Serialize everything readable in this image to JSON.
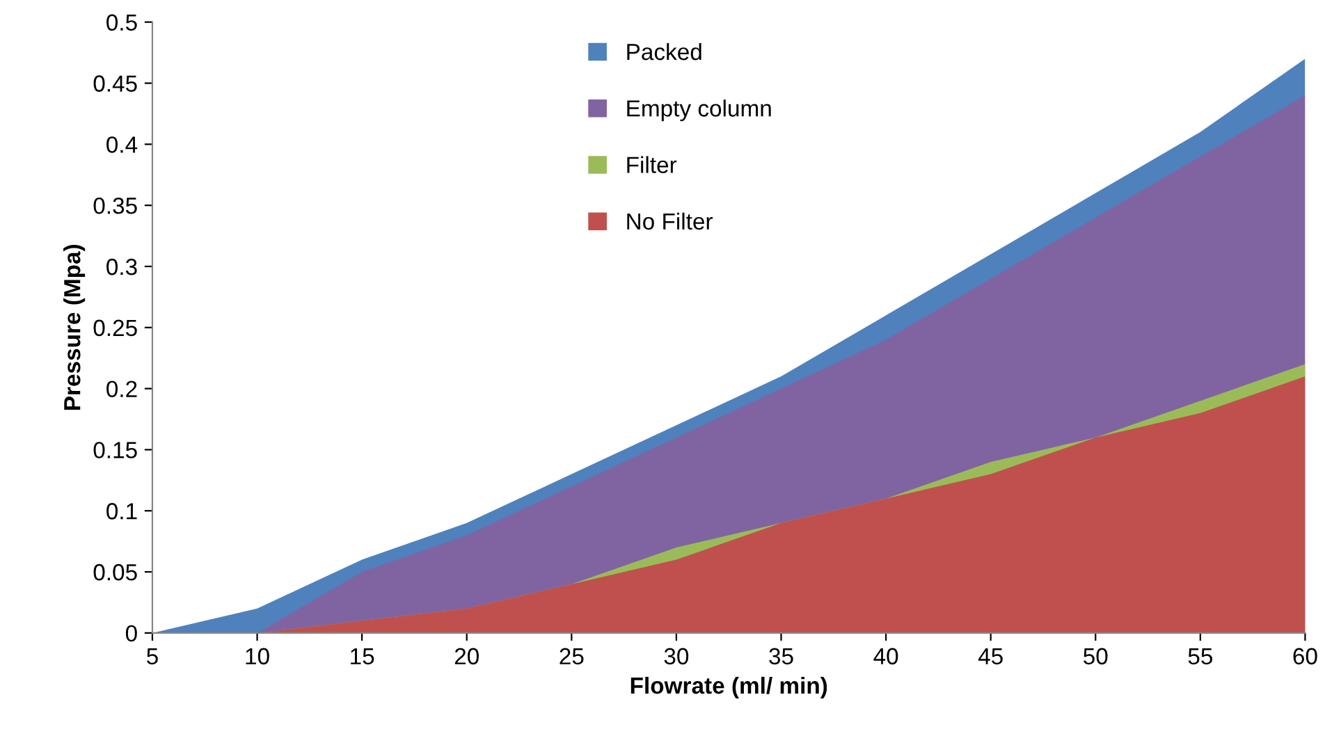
{
  "chart_data": {
    "type": "area",
    "xlabel": "Flowrate (ml/ min)",
    "ylabel": "Pressure (Mpa)",
    "x": [
      5,
      10,
      15,
      20,
      25,
      30,
      35,
      40,
      45,
      50,
      55,
      60
    ],
    "series": [
      {
        "name": "Packed",
        "color": "#4f81bd",
        "values": [
          0,
          0.02,
          0.06,
          0.09,
          0.13,
          0.17,
          0.21,
          0.26,
          0.31,
          0.36,
          0.41,
          0.47
        ]
      },
      {
        "name": "Empty column",
        "color": "#8064a2",
        "values": [
          0,
          0,
          0.05,
          0.08,
          0.12,
          0.16,
          0.2,
          0.24,
          0.29,
          0.34,
          0.39,
          0.44
        ]
      },
      {
        "name": "Filter",
        "color": "#9bbb59",
        "values": [
          0,
          0,
          0.01,
          0.02,
          0.04,
          0.07,
          0.09,
          0.11,
          0.14,
          0.16,
          0.19,
          0.22
        ]
      },
      {
        "name": "No Filter",
        "color": "#c0504d",
        "values": [
          0,
          0,
          0.01,
          0.02,
          0.04,
          0.06,
          0.09,
          0.11,
          0.13,
          0.16,
          0.18,
          0.21
        ]
      }
    ],
    "xlim": [
      5,
      60
    ],
    "xticks": [
      5,
      10,
      15,
      20,
      25,
      30,
      35,
      40,
      45,
      50,
      55,
      60
    ],
    "ylim": [
      0,
      0.5
    ],
    "yticks": [
      0,
      0.05,
      0.1,
      0.15,
      0.2,
      0.25,
      0.3,
      0.35,
      0.4,
      0.45,
      0.5
    ],
    "grid": false,
    "legend": "top"
  }
}
